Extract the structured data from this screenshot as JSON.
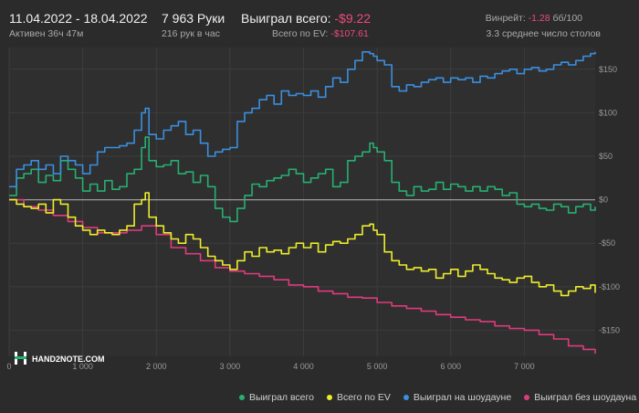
{
  "header": {
    "date_range": "11.04.2022 - 18.04.2022",
    "active": "Активен 36ч 47м",
    "hands": "7 963 Руки",
    "hands_per_hour": "216 рук в час",
    "won_label": "Выиграл всего:",
    "won_value": "-$9.22",
    "ev_label": "Всего по EV:",
    "ev_value": "-$107.61",
    "winrate_label": "Винрейт:",
    "winrate_value": "-1.28",
    "winrate_unit": "бб/100",
    "tables": "3.3 среднее число столов"
  },
  "watermark": "HAND2NOTE.COM",
  "colors": {
    "green": "#26b072",
    "yellow": "#eded2b",
    "blue": "#3a8fe0",
    "pink": "#e13a7c",
    "zero_line": "#9a9a9a",
    "grid": "#3d3d3d"
  },
  "chart_data": {
    "type": "line",
    "x_ticks": [
      "0",
      "1 000",
      "2 000",
      "3 000",
      "4 000",
      "5 000",
      "6 000",
      "7 000"
    ],
    "x_tick_values": [
      0,
      1000,
      2000,
      3000,
      4000,
      5000,
      6000,
      7000
    ],
    "y_ticks": [
      "$150",
      "$100",
      "$50",
      "$0",
      "-$50",
      "-$100",
      "-$150"
    ],
    "y_tick_values": [
      150,
      100,
      50,
      0,
      -50,
      -100,
      -150
    ],
    "xlim": [
      0,
      7963
    ],
    "ylim": [
      -180,
      175
    ],
    "legend_position": "bottom-right",
    "series": [
      {
        "name": "Выиграл всего",
        "color": "#26b072",
        "x": [
          0,
          100,
          200,
          300,
          400,
          500,
          600,
          700,
          800,
          900,
          1000,
          1100,
          1200,
          1300,
          1400,
          1500,
          1600,
          1700,
          1800,
          1850,
          1900,
          2000,
          2100,
          2200,
          2300,
          2400,
          2500,
          2600,
          2700,
          2800,
          2900,
          3000,
          3100,
          3200,
          3300,
          3400,
          3500,
          3600,
          3700,
          3800,
          3900,
          4000,
          4100,
          4200,
          4300,
          4400,
          4500,
          4600,
          4700,
          4800,
          4900,
          4950,
          5000,
          5100,
          5200,
          5300,
          5400,
          5500,
          5600,
          5700,
          5800,
          5900,
          6000,
          6100,
          6200,
          6300,
          6400,
          6500,
          6600,
          6700,
          6800,
          6900,
          7000,
          7100,
          7200,
          7300,
          7400,
          7500,
          7600,
          7700,
          7800,
          7900,
          7963
        ],
        "y": [
          5,
          25,
          30,
          35,
          20,
          28,
          22,
          45,
          35,
          25,
          10,
          18,
          10,
          22,
          12,
          15,
          30,
          35,
          60,
          72,
          45,
          38,
          40,
          45,
          30,
          32,
          20,
          28,
          15,
          -10,
          -20,
          -25,
          -10,
          5,
          18,
          15,
          22,
          25,
          28,
          35,
          30,
          20,
          25,
          30,
          35,
          15,
          20,
          45,
          50,
          55,
          65,
          60,
          55,
          45,
          20,
          10,
          5,
          15,
          10,
          12,
          20,
          12,
          18,
          15,
          10,
          15,
          10,
          15,
          12,
          5,
          8,
          -5,
          -8,
          -5,
          -10,
          -12,
          -5,
          -8,
          -15,
          -8,
          -5,
          -12,
          -8
        ]
      },
      {
        "name": "Всего по EV",
        "color": "#eded2b",
        "x": [
          0,
          100,
          200,
          300,
          400,
          500,
          600,
          700,
          800,
          900,
          1000,
          1100,
          1200,
          1300,
          1400,
          1500,
          1600,
          1700,
          1800,
          1850,
          1900,
          2000,
          2100,
          2200,
          2300,
          2400,
          2500,
          2600,
          2700,
          2800,
          2900,
          3000,
          3100,
          3200,
          3300,
          3400,
          3500,
          3600,
          3700,
          3800,
          3900,
          4000,
          4100,
          4200,
          4300,
          4400,
          4500,
          4600,
          4700,
          4800,
          4900,
          4950,
          5000,
          5100,
          5200,
          5300,
          5400,
          5500,
          5600,
          5700,
          5800,
          5900,
          6000,
          6100,
          6200,
          6300,
          6400,
          6500,
          6600,
          6700,
          6800,
          6900,
          7000,
          7100,
          7200,
          7300,
          7400,
          7500,
          7600,
          7700,
          7800,
          7900,
          7963
        ],
        "y": [
          0,
          -5,
          -8,
          -10,
          -5,
          -15,
          0,
          -5,
          -20,
          -30,
          -35,
          -40,
          -35,
          -38,
          -40,
          -35,
          -30,
          -5,
          0,
          8,
          -20,
          -30,
          -38,
          -45,
          -50,
          -40,
          -45,
          -55,
          -65,
          -70,
          -75,
          -80,
          -70,
          -60,
          -65,
          -55,
          -60,
          -58,
          -62,
          -55,
          -50,
          -55,
          -50,
          -60,
          -52,
          -48,
          -50,
          -45,
          -40,
          -30,
          -28,
          -35,
          -40,
          -60,
          -70,
          -75,
          -80,
          -78,
          -82,
          -80,
          -90,
          -85,
          -80,
          -88,
          -82,
          -75,
          -80,
          -85,
          -90,
          -92,
          -95,
          -90,
          -88,
          -95,
          -100,
          -98,
          -105,
          -110,
          -105,
          -100,
          -102,
          -98,
          -107
        ]
      },
      {
        "name": "Выиграл на шоудауне",
        "color": "#3a8fe0",
        "x": [
          0,
          100,
          200,
          300,
          400,
          500,
          600,
          700,
          800,
          900,
          1000,
          1100,
          1200,
          1300,
          1400,
          1500,
          1600,
          1700,
          1800,
          1850,
          1900,
          2000,
          2100,
          2200,
          2300,
          2400,
          2500,
          2600,
          2700,
          2800,
          2900,
          3000,
          3100,
          3200,
          3300,
          3400,
          3500,
          3600,
          3700,
          3800,
          3900,
          4000,
          4100,
          4200,
          4300,
          4400,
          4500,
          4600,
          4700,
          4800,
          4900,
          4950,
          5000,
          5100,
          5200,
          5300,
          5400,
          5500,
          5600,
          5700,
          5800,
          5900,
          6000,
          6100,
          6200,
          6300,
          6400,
          6500,
          6600,
          6700,
          6800,
          6900,
          7000,
          7100,
          7200,
          7300,
          7400,
          7500,
          7600,
          7700,
          7800,
          7900,
          7963
        ],
        "y": [
          15,
          35,
          40,
          45,
          35,
          40,
          30,
          50,
          45,
          40,
          30,
          40,
          55,
          60,
          60,
          62,
          65,
          80,
          100,
          105,
          75,
          70,
          80,
          85,
          90,
          75,
          80,
          65,
          50,
          55,
          58,
          60,
          90,
          100,
          105,
          115,
          120,
          110,
          125,
          120,
          122,
          120,
          125,
          118,
          130,
          140,
          135,
          150,
          160,
          170,
          168,
          165,
          160,
          155,
          130,
          125,
          132,
          130,
          135,
          138,
          140,
          135,
          140,
          138,
          140,
          135,
          142,
          140,
          145,
          148,
          150,
          145,
          150,
          152,
          148,
          150,
          155,
          158,
          155,
          160,
          165,
          168,
          170
        ]
      },
      {
        "name": "Выиграл без шоудауна",
        "color": "#e13a7c",
        "x": [
          0,
          200,
          400,
          600,
          800,
          1000,
          1200,
          1400,
          1600,
          1800,
          2000,
          2200,
          2400,
          2600,
          2800,
          3000,
          3200,
          3400,
          3600,
          3800,
          4000,
          4200,
          4400,
          4600,
          4800,
          5000,
          5200,
          5400,
          5600,
          5800,
          6000,
          6200,
          6400,
          6600,
          6800,
          7000,
          7200,
          7400,
          7600,
          7800,
          7963
        ],
        "y": [
          0,
          -8,
          -12,
          -18,
          -25,
          -32,
          -38,
          -38,
          -35,
          -30,
          -40,
          -55,
          -62,
          -70,
          -78,
          -82,
          -85,
          -88,
          -92,
          -98,
          -100,
          -105,
          -108,
          -112,
          -113,
          -118,
          -122,
          -125,
          -128,
          -132,
          -135,
          -138,
          -140,
          -145,
          -148,
          -150,
          -155,
          -160,
          -168,
          -172,
          -177
        ]
      }
    ]
  }
}
